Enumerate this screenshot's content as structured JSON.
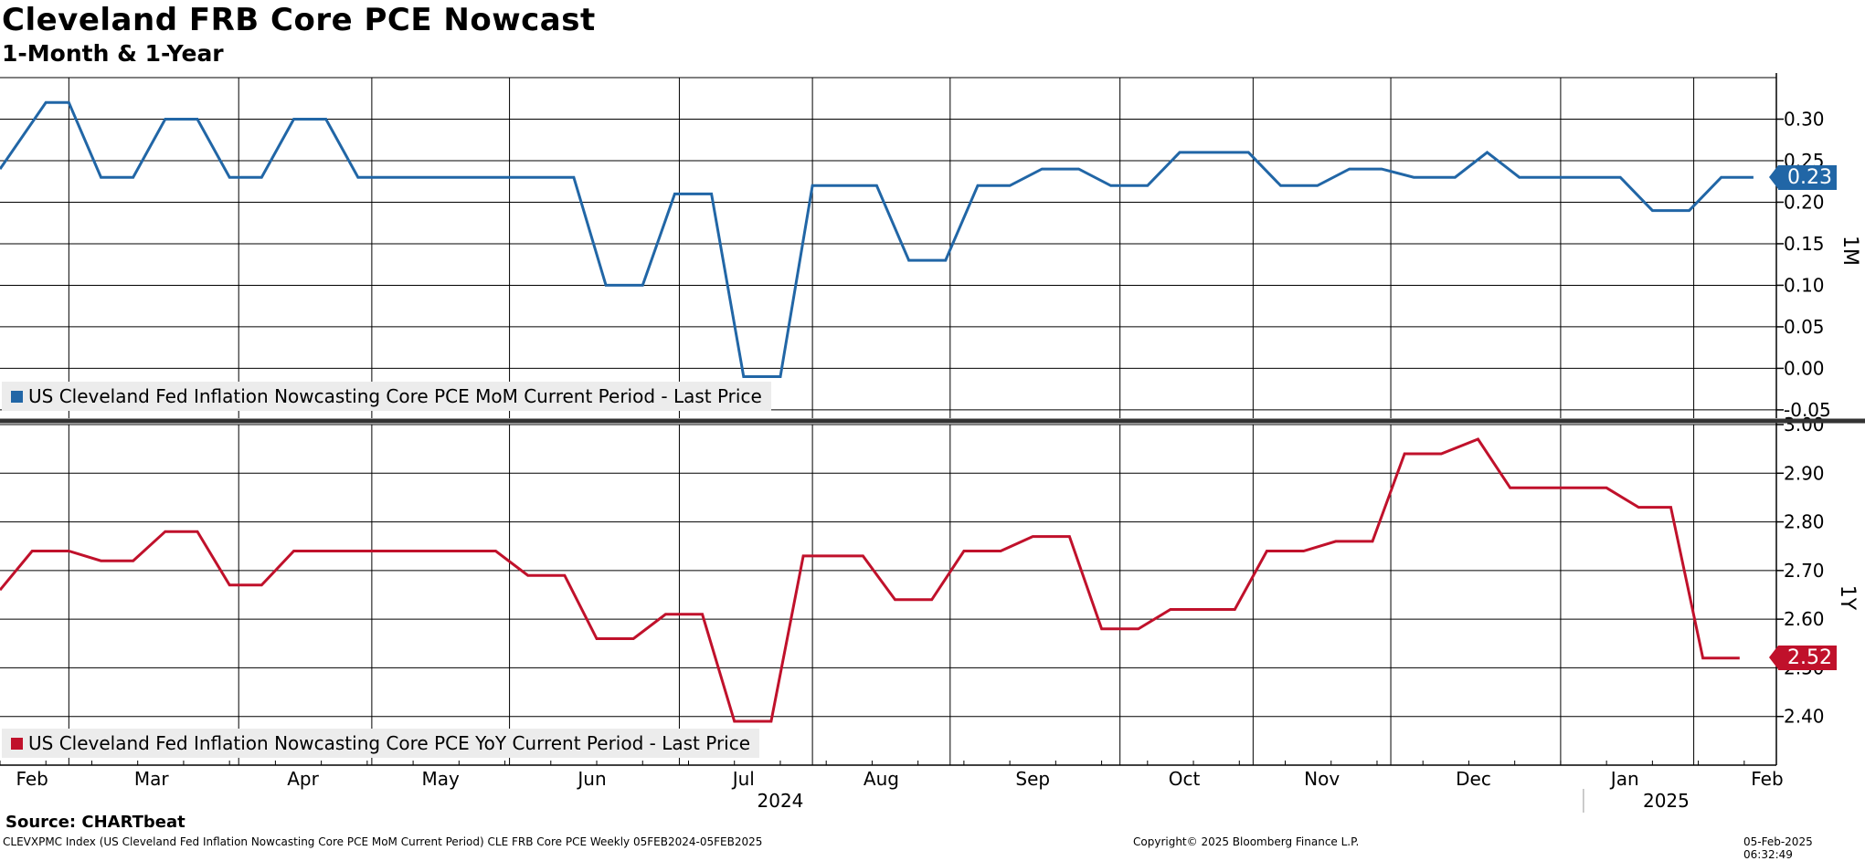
{
  "title": "Cleveland FRB Core PCE Nowcast",
  "subtitle": "1-Month & 1-Year",
  "colors": {
    "mom": "#2166a6",
    "yoy": "#c0112b",
    "grid": "#000000",
    "legend_bg": "#ececec"
  },
  "chart_data": [
    {
      "type": "line",
      "panel": "top",
      "axis_label": "1M",
      "legend": "US Cleveland Fed Inflation Nowcasting Core PCE MoM Current Period - Last Price",
      "ylim": [
        -0.06,
        0.35
      ],
      "yticks": [
        -0.05,
        0.0,
        0.05,
        0.1,
        0.15,
        0.2,
        0.25,
        0.3
      ],
      "ytick_labels": [
        "-0.05",
        "0.00",
        "0.05",
        "0.10",
        "0.15",
        "0.20",
        "0.25",
        "0.30"
      ],
      "last_value": 0.23,
      "last_label": "0.23",
      "series": [
        {
          "name": "MoM",
          "points": [
            [
              0.0,
              0.24
            ],
            [
              1.0,
              0.32
            ],
            [
              1.5,
              0.32
            ],
            [
              2.2,
              0.23
            ],
            [
              2.9,
              0.23
            ],
            [
              3.6,
              0.3
            ],
            [
              4.3,
              0.3
            ],
            [
              5.0,
              0.23
            ],
            [
              5.7,
              0.23
            ],
            [
              6.4,
              0.3
            ],
            [
              7.1,
              0.3
            ],
            [
              7.8,
              0.23
            ],
            [
              12.5,
              0.23
            ],
            [
              13.2,
              0.1
            ],
            [
              14.0,
              0.1
            ],
            [
              14.7,
              0.21
            ],
            [
              15.5,
              0.21
            ],
            [
              16.2,
              -0.01
            ],
            [
              17.0,
              -0.01
            ],
            [
              17.7,
              0.22
            ],
            [
              19.1,
              0.22
            ],
            [
              19.8,
              0.13
            ],
            [
              20.6,
              0.13
            ],
            [
              21.3,
              0.22
            ],
            [
              22.0,
              0.22
            ],
            [
              22.7,
              0.24
            ],
            [
              23.5,
              0.24
            ],
            [
              24.2,
              0.22
            ],
            [
              25.0,
              0.22
            ],
            [
              25.7,
              0.26
            ],
            [
              27.2,
              0.26
            ],
            [
              27.9,
              0.22
            ],
            [
              28.7,
              0.22
            ],
            [
              29.4,
              0.24
            ],
            [
              30.1,
              0.24
            ],
            [
              30.8,
              0.23
            ],
            [
              31.7,
              0.23
            ],
            [
              32.4,
              0.26
            ],
            [
              33.1,
              0.23
            ],
            [
              35.3,
              0.23
            ],
            [
              36.0,
              0.19
            ],
            [
              36.8,
              0.19
            ],
            [
              37.5,
              0.23
            ],
            [
              38.2,
              0.23
            ]
          ]
        }
      ]
    },
    {
      "type": "line",
      "panel": "bottom",
      "axis_label": "1Y",
      "legend": "US Cleveland Fed Inflation Nowcasting Core PCE YoY Current Period - Last Price",
      "ylim": [
        2.3,
        3.0
      ],
      "yticks": [
        2.4,
        2.5,
        2.6,
        2.7,
        2.8,
        2.9,
        3.0
      ],
      "ytick_labels": [
        "2.40",
        "2.50",
        "2.60",
        "2.70",
        "2.80",
        "2.90",
        "3.00"
      ],
      "last_value": 2.52,
      "last_label": "2.52",
      "series": [
        {
          "name": "YoY",
          "points": [
            [
              0.0,
              2.66
            ],
            [
              0.7,
              2.74
            ],
            [
              1.5,
              2.74
            ],
            [
              2.2,
              2.72
            ],
            [
              2.9,
              2.72
            ],
            [
              3.6,
              2.78
            ],
            [
              4.3,
              2.78
            ],
            [
              5.0,
              2.67
            ],
            [
              5.7,
              2.67
            ],
            [
              6.4,
              2.74
            ],
            [
              10.8,
              2.74
            ],
            [
              11.5,
              2.69
            ],
            [
              12.3,
              2.69
            ],
            [
              13.0,
              2.56
            ],
            [
              13.8,
              2.56
            ],
            [
              14.5,
              2.61
            ],
            [
              15.3,
              2.61
            ],
            [
              16.0,
              2.39
            ],
            [
              16.8,
              2.39
            ],
            [
              17.5,
              2.73
            ],
            [
              18.8,
              2.73
            ],
            [
              19.5,
              2.64
            ],
            [
              20.3,
              2.64
            ],
            [
              21.0,
              2.74
            ],
            [
              21.8,
              2.74
            ],
            [
              22.5,
              2.77
            ],
            [
              23.3,
              2.77
            ],
            [
              24.0,
              2.58
            ],
            [
              24.8,
              2.58
            ],
            [
              25.5,
              2.62
            ],
            [
              26.9,
              2.62
            ],
            [
              27.6,
              2.74
            ],
            [
              28.4,
              2.74
            ],
            [
              29.1,
              2.76
            ],
            [
              29.9,
              2.76
            ],
            [
              30.6,
              2.94
            ],
            [
              31.4,
              2.94
            ],
            [
              32.2,
              2.97
            ],
            [
              32.9,
              2.87
            ],
            [
              35.0,
              2.87
            ],
            [
              35.7,
              2.83
            ],
            [
              36.4,
              2.83
            ],
            [
              37.1,
              2.52
            ],
            [
              37.9,
              2.52
            ]
          ]
        }
      ]
    }
  ],
  "x_axis": {
    "range_weeks": [
      0,
      38.7
    ],
    "gridline_weeks": [
      1.5,
      5.2,
      8.1,
      11.1,
      14.8,
      17.7,
      20.7,
      24.4,
      27.3,
      30.3,
      34.0,
      36.9
    ],
    "month_labels": [
      {
        "label": "Feb",
        "week": 0.7
      },
      {
        "label": "Mar",
        "week": 3.3
      },
      {
        "label": "Apr",
        "week": 6.6
      },
      {
        "label": "May",
        "week": 9.6
      },
      {
        "label": "Jun",
        "week": 12.9
      },
      {
        "label": "Jul",
        "week": 16.2
      },
      {
        "label": "Aug",
        "week": 19.2
      },
      {
        "label": "Sep",
        "week": 22.5
      },
      {
        "label": "Oct",
        "week": 25.8
      },
      {
        "label": "Nov",
        "week": 28.8
      },
      {
        "label": "Dec",
        "week": 32.1
      },
      {
        "label": "Jan",
        "week": 35.4
      },
      {
        "label": "Feb",
        "week": 38.5
      }
    ],
    "year_labels": [
      {
        "label": "2024",
        "week": 17.0
      },
      {
        "label": "2025",
        "week": 36.3
      }
    ],
    "year_divider_week": 34.0
  },
  "footer": {
    "source": "Source: CHARTbeat",
    "left": "CLEVXPMC Index (US Cleveland Fed Inflation Nowcasting Core PCE MoM Current Period) CLE FRB Core PCE  Weekly 05FEB2024-05FEB2025",
    "center": "Copyright© 2025 Bloomberg Finance L.P.",
    "right": "05-Feb-2025 06:32:49"
  }
}
